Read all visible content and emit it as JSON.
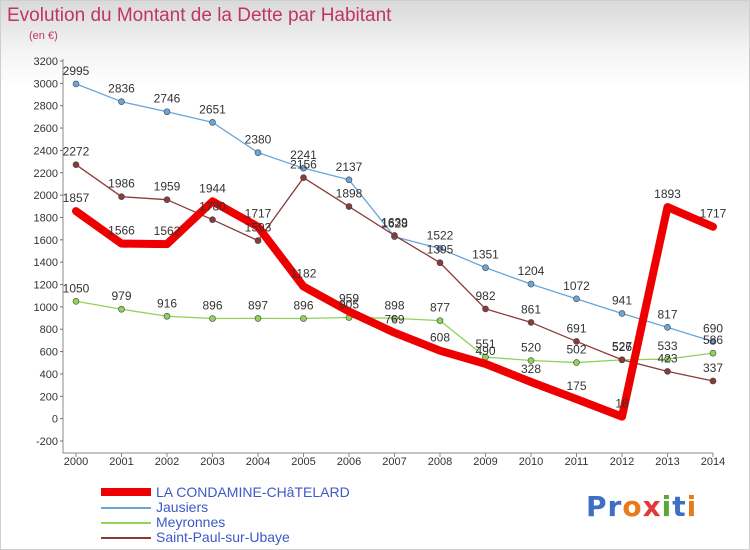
{
  "title": "Evolution du Montant de la Dette par Habitant",
  "subtitle": "(en €)",
  "logo": {
    "text": "Proxiti",
    "colors": [
      "#3f6fc4",
      "#3f6fc4",
      "#e87a1b",
      "#e23a3a",
      "#59a834",
      "#3f6fc4",
      "#e87a1b"
    ]
  },
  "chart_data": {
    "type": "line",
    "x": [
      "2000",
      "2001",
      "2002",
      "2003",
      "2004",
      "2005",
      "2006",
      "2007",
      "2008",
      "2009",
      "2010",
      "2011",
      "2012",
      "2013",
      "2014"
    ],
    "y_ticks": [
      3200,
      3000,
      2800,
      2600,
      2400,
      2200,
      2000,
      1800,
      1600,
      1400,
      1200,
      1000,
      800,
      600,
      400,
      200,
      0,
      -200
    ],
    "ylim": [
      -200,
      3200
    ],
    "grid": false,
    "legend_position": "bottom-left",
    "series": [
      {
        "name": "LA CONDAMINE-CHâTELARD",
        "color": "#ee0000",
        "width": 8,
        "values": [
          1857,
          1566,
          1562,
          1944,
          1717,
          1182,
          959,
          769,
          608,
          490,
          328,
          175,
          18,
          1893,
          1717
        ],
        "labels": [
          "1857",
          "1566",
          "1562",
          "1944",
          "1717",
          "1182",
          "959",
          "769",
          "608",
          "490",
          "328",
          "175",
          "18",
          "1893",
          "1717"
        ]
      },
      {
        "name": "Jausiers",
        "color": "#6aa5d8",
        "width": 1.3,
        "values": [
          2995,
          2836,
          2746,
          2651,
          2380,
          2241,
          2137,
          1628,
          1522,
          1351,
          1204,
          1072,
          941,
          817,
          690
        ],
        "labels": [
          "2995",
          "2836",
          "2746",
          "2651",
          "2380",
          "2241",
          "2137",
          "1628",
          "1522",
          "1351",
          "1204",
          "1072",
          "941",
          "817",
          "690"
        ]
      },
      {
        "name": "Meyronnes",
        "color": "#8fd35a",
        "width": 1.3,
        "values": [
          1050,
          979,
          916,
          896,
          897,
          896,
          905,
          898,
          877,
          551,
          520,
          502,
          526,
          533,
          586
        ],
        "labels": [
          "1050",
          "979",
          "916",
          "896",
          "897",
          "896",
          "905",
          "898",
          "877",
          "551",
          "520",
          "502",
          "526",
          "533",
          "586"
        ]
      },
      {
        "name": "Saint-Paul-sur-Ubaye",
        "color": "#8b3a3a",
        "width": 1.3,
        "values": [
          2272,
          1986,
          1959,
          1780,
          1593,
          2156,
          1898,
          1639,
          1395,
          982,
          861,
          691,
          527,
          423,
          337
        ],
        "labels": [
          "2272",
          "1986",
          "1959",
          "1780",
          "1593",
          "2156",
          "1898",
          "1639",
          "1395",
          "982",
          "861",
          "691",
          "527",
          "423",
          "337"
        ]
      }
    ]
  }
}
